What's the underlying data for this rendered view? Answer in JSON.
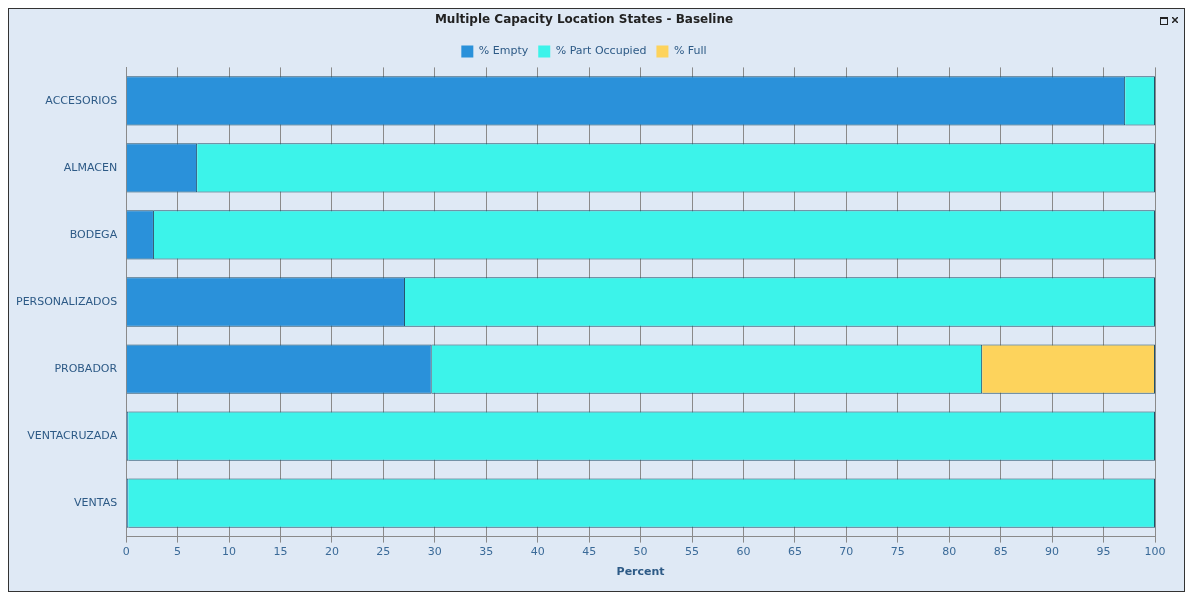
{
  "chart_data": {
    "type": "bar",
    "orientation": "horizontal",
    "stacked": true,
    "title": "Multiple Capacity Location States - Baseline",
    "xlabel": "Percent",
    "categories": [
      "ACCESORIOS",
      "ALMACEN",
      "BODEGA",
      "PERSONALIZADOS",
      "PROBADOR",
      "VENTACRUZADA",
      "VENTAS"
    ],
    "series": [
      {
        "name": "% Empty",
        "color": "#2a91da",
        "values": [
          97.1,
          6.9,
          2.7,
          27.1,
          29.7,
          0.2,
          0.2
        ]
      },
      {
        "name": "% Part Occupied",
        "color": "#3cf3ea",
        "values": [
          2.9,
          93.1,
          97.3,
          72.9,
          53.5,
          99.8,
          99.8
        ]
      },
      {
        "name": "% Full",
        "color": "#fdd35c",
        "values": [
          0,
          0,
          0,
          0,
          16.8,
          0,
          0
        ]
      }
    ],
    "xlim": [
      0,
      100
    ],
    "xticks": [
      0,
      5,
      10,
      15,
      20,
      25,
      30,
      35,
      40,
      45,
      50,
      55,
      60,
      65,
      70,
      75,
      80,
      85,
      90,
      95,
      100
    ],
    "grid": "x",
    "legend": "top"
  }
}
